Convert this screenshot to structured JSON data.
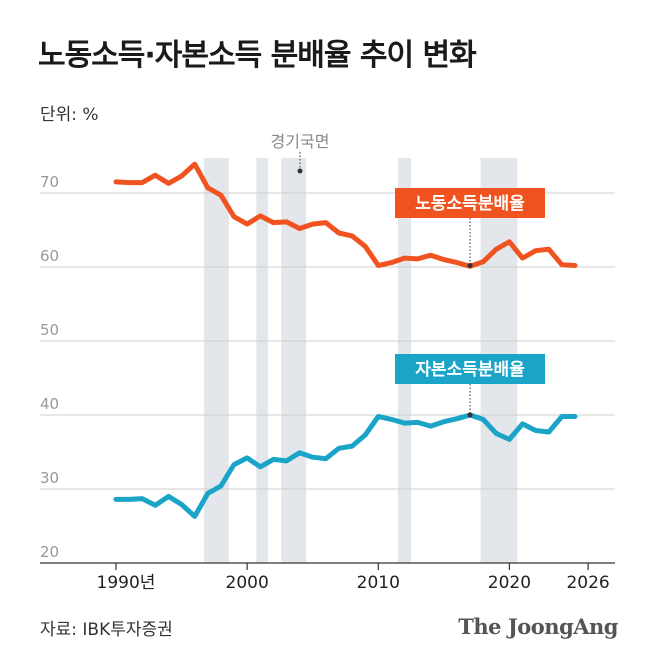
{
  "title": "노동소득·자본소득 분배율 추이 변화",
  "unit_label": "단위: %",
  "source": "자료: IBK투자증권",
  "brand": "The JoongAng",
  "recession_label": "경기국면",
  "colors": {
    "labor": "#f0531f",
    "capital": "#1aa4c8",
    "recession": "#e3e6ea",
    "grid": "#cfcfcf"
  },
  "chart_data": {
    "type": "line",
    "title": "노동소득·자본소득 분배율 추이 변화",
    "ylabel": "단위: %",
    "xlim": [
      1990,
      2026
    ],
    "ylim": [
      20,
      75
    ],
    "x_ticks": [
      {
        "value": 1990,
        "label": "1990년"
      },
      {
        "value": 2000,
        "label": "2000"
      },
      {
        "value": 2010,
        "label": "2010"
      },
      {
        "value": 2020,
        "label": "2020"
      },
      {
        "value": 2026,
        "label": "2026"
      }
    ],
    "y_ticks": [
      20,
      30,
      40,
      50,
      60,
      70
    ],
    "recession_bands": [
      [
        1996.7,
        1998.6
      ],
      [
        2000.7,
        2001.6
      ],
      [
        2002.6,
        2004.5
      ],
      [
        2011.5,
        2012.5
      ],
      [
        2017.8,
        2020.6
      ]
    ],
    "series": [
      {
        "name": "노동소득분배율",
        "x": [
          1990,
          1991,
          1992,
          1993,
          1994,
          1995,
          1996,
          1997,
          1998,
          1999,
          2000,
          2001,
          2002,
          2003,
          2004,
          2005,
          2006,
          2007,
          2008,
          2009,
          2010,
          2011,
          2012,
          2013,
          2014,
          2015,
          2016,
          2017,
          2018,
          2019,
          2020,
          2021,
          2022,
          2023,
          2024,
          2025
        ],
        "values": [
          71.5,
          71.4,
          71.4,
          72.4,
          71.3,
          72.3,
          73.9,
          70.7,
          69.7,
          66.8,
          65.8,
          66.9,
          66.0,
          66.1,
          65.2,
          65.8,
          66.0,
          64.6,
          64.2,
          62.8,
          60.2,
          60.6,
          61.2,
          61.1,
          61.6,
          61.0,
          60.6,
          60.1,
          60.7,
          62.4,
          63.4,
          61.2,
          62.2,
          62.4,
          60.3,
          60.2
        ]
      },
      {
        "name": "자본소득분배율",
        "x": [
          1990,
          1991,
          1992,
          1993,
          1994,
          1995,
          1996,
          1997,
          1998,
          1999,
          2000,
          2001,
          2002,
          2003,
          2004,
          2005,
          2006,
          2007,
          2008,
          2009,
          2010,
          2011,
          2012,
          2013,
          2014,
          2015,
          2016,
          2017,
          2018,
          2019,
          2020,
          2021,
          2022,
          2023,
          2024,
          2025
        ],
        "values": [
          28.6,
          28.6,
          28.7,
          27.8,
          29.0,
          27.9,
          26.3,
          29.4,
          30.4,
          33.3,
          34.2,
          33.0,
          34.0,
          33.8,
          34.9,
          34.3,
          34.1,
          35.5,
          35.8,
          37.3,
          39.8,
          39.4,
          38.9,
          39.0,
          38.5,
          39.1,
          39.5,
          40.0,
          39.4,
          37.5,
          36.7,
          38.8,
          37.9,
          37.7,
          39.8,
          39.8
        ]
      }
    ],
    "series_labels": [
      {
        "series": "노동소득분배율",
        "text": "노동소득분배율",
        "anchor_x": 2017,
        "anchor_y": 60.2
      },
      {
        "series": "자본소득분배율",
        "text": "자본소득분배율",
        "anchor_x": 2017,
        "anchor_y": 40.0
      }
    ]
  }
}
